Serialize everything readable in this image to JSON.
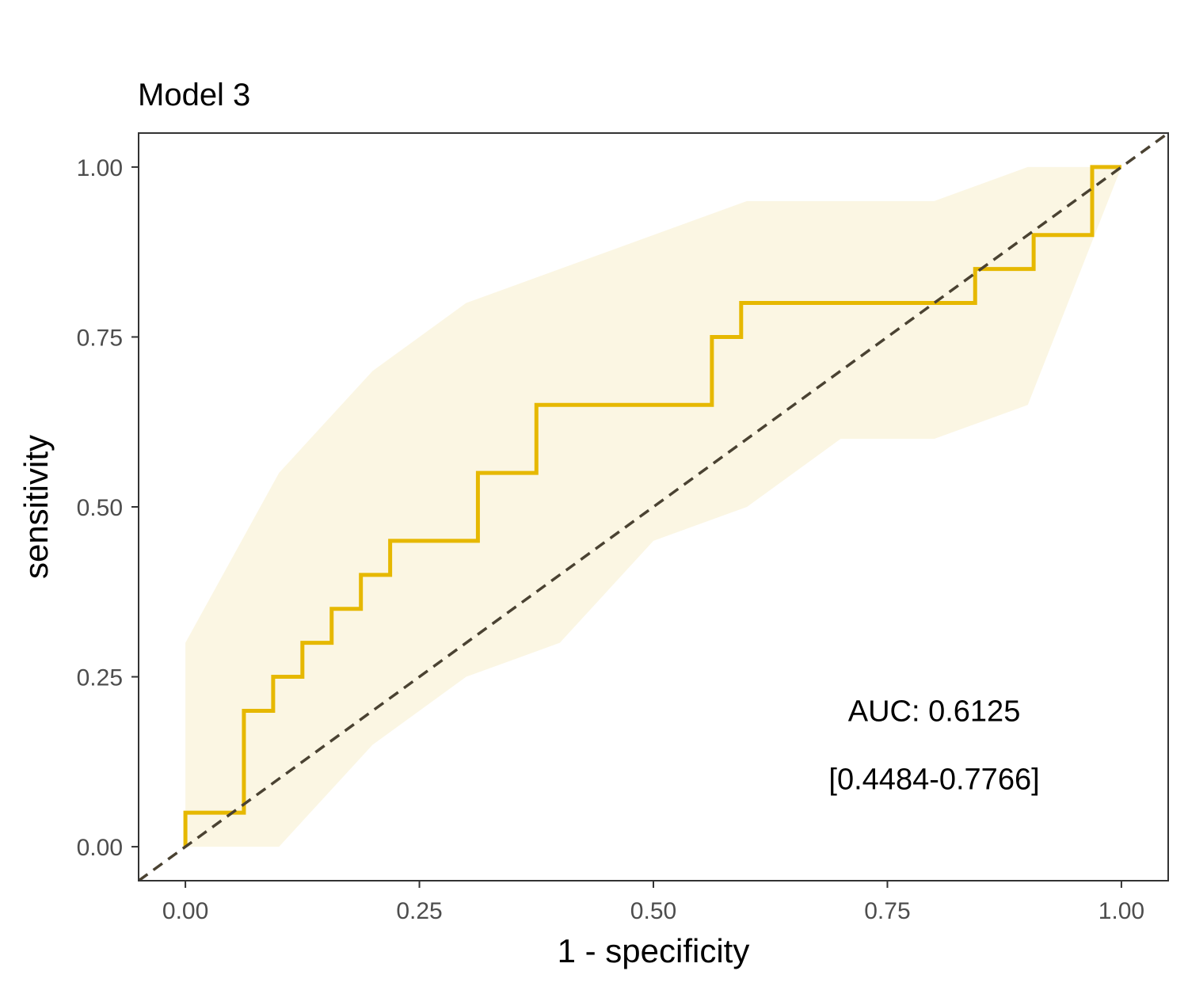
{
  "chart_data": {
    "type": "line",
    "title": "Model 3",
    "xlabel": "1 - specificity",
    "ylabel": "sensitivity",
    "xlim": [
      -0.05,
      1.05
    ],
    "ylim": [
      -0.05,
      1.05
    ],
    "x_ticks": [
      "0.00",
      "0.25",
      "0.50",
      "0.75",
      "1.00"
    ],
    "y_ticks": [
      "0.00",
      "0.25",
      "0.50",
      "0.75",
      "1.00"
    ],
    "grid": false,
    "colors": {
      "roc": "#E6B800",
      "ci_band": "#FBF6E3",
      "diagonal": "#4a4232",
      "frame": "#333333"
    },
    "roc_points": [
      [
        0.0,
        0.0
      ],
      [
        0.0,
        0.05
      ],
      [
        0.0625,
        0.05
      ],
      [
        0.0625,
        0.2
      ],
      [
        0.09375,
        0.2
      ],
      [
        0.09375,
        0.25
      ],
      [
        0.125,
        0.25
      ],
      [
        0.125,
        0.3
      ],
      [
        0.15625,
        0.3
      ],
      [
        0.15625,
        0.35
      ],
      [
        0.1875,
        0.35
      ],
      [
        0.1875,
        0.4
      ],
      [
        0.21875,
        0.4
      ],
      [
        0.21875,
        0.45
      ],
      [
        0.3125,
        0.45
      ],
      [
        0.3125,
        0.55
      ],
      [
        0.375,
        0.55
      ],
      [
        0.375,
        0.65
      ],
      [
        0.5625,
        0.65
      ],
      [
        0.5625,
        0.75
      ],
      [
        0.59375,
        0.75
      ],
      [
        0.59375,
        0.8
      ],
      [
        0.84375,
        0.8
      ],
      [
        0.84375,
        0.85
      ],
      [
        0.90625,
        0.85
      ],
      [
        0.90625,
        0.9
      ],
      [
        0.96875,
        0.9
      ],
      [
        0.96875,
        1.0
      ],
      [
        1.0,
        1.0
      ]
    ],
    "ci_upper": [
      [
        0.0,
        0.3
      ],
      [
        0.1,
        0.55
      ],
      [
        0.2,
        0.7
      ],
      [
        0.3,
        0.8
      ],
      [
        0.4,
        0.85
      ],
      [
        0.5,
        0.9
      ],
      [
        0.6,
        0.95
      ],
      [
        0.7,
        0.95
      ],
      [
        0.8,
        0.95
      ],
      [
        0.9,
        1.0
      ],
      [
        1.0,
        1.0
      ]
    ],
    "ci_lower": [
      [
        1.0,
        1.0
      ],
      [
        0.9,
        0.65
      ],
      [
        0.8,
        0.6
      ],
      [
        0.7,
        0.6
      ],
      [
        0.6,
        0.5
      ],
      [
        0.5,
        0.45
      ],
      [
        0.4,
        0.3
      ],
      [
        0.3,
        0.25
      ],
      [
        0.2,
        0.15
      ],
      [
        0.1,
        0.0
      ],
      [
        0.0,
        0.0
      ]
    ],
    "diagonal": [
      [
        -0.05,
        -0.05
      ],
      [
        1.05,
        1.05
      ]
    ],
    "annotations": {
      "auc": "AUC: 0.6125",
      "ci": "[0.4484-0.7766]",
      "anchor": [
        0.8,
        0.2,
        0.1
      ]
    }
  }
}
